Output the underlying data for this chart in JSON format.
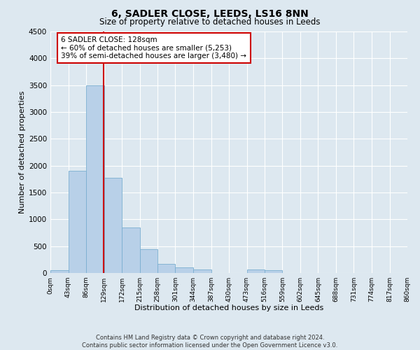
{
  "title": "6, SADLER CLOSE, LEEDS, LS16 8NN",
  "subtitle": "Size of property relative to detached houses in Leeds",
  "xlabel": "Distribution of detached houses by size in Leeds",
  "ylabel": "Number of detached properties",
  "bar_values": [
    50,
    1900,
    3500,
    1775,
    850,
    450,
    175,
    100,
    60,
    0,
    0,
    60,
    50,
    0,
    0,
    0,
    0,
    0,
    0,
    0
  ],
  "bin_edges": [
    0,
    43,
    86,
    129,
    172,
    215,
    258,
    301,
    344,
    387,
    430,
    473,
    516,
    559,
    602,
    645,
    688,
    731,
    774,
    817,
    860
  ],
  "x_labels": [
    "0sqm",
    "43sqm",
    "86sqm",
    "129sqm",
    "172sqm",
    "215sqm",
    "258sqm",
    "301sqm",
    "344sqm",
    "387sqm",
    "430sqm",
    "473sqm",
    "516sqm",
    "559sqm",
    "602sqm",
    "645sqm",
    "688sqm",
    "731sqm",
    "774sqm",
    "817sqm",
    "860sqm"
  ],
  "bar_color": "#b8d0e8",
  "bar_edge_color": "#7aaed0",
  "property_line_x": 128,
  "property_line_color": "#cc0000",
  "annotation_line1": "6 SADLER CLOSE: 128sqm",
  "annotation_line2": "← 60% of detached houses are smaller (5,253)",
  "annotation_line3": "39% of semi-detached houses are larger (3,480) →",
  "annotation_box_edge": "#cc0000",
  "ylim": [
    0,
    4500
  ],
  "yticks": [
    0,
    500,
    1000,
    1500,
    2000,
    2500,
    3000,
    3500,
    4000,
    4500
  ],
  "footer_line1": "Contains HM Land Registry data © Crown copyright and database right 2024.",
  "footer_line2": "Contains public sector information licensed under the Open Government Licence v3.0.",
  "bg_color": "#dde8f0",
  "plot_bg_color": "#dde8f0",
  "grid_color": "#ffffff",
  "title_fontsize": 10,
  "subtitle_fontsize": 8.5,
  "ylabel_fontsize": 8,
  "xlabel_fontsize": 8
}
